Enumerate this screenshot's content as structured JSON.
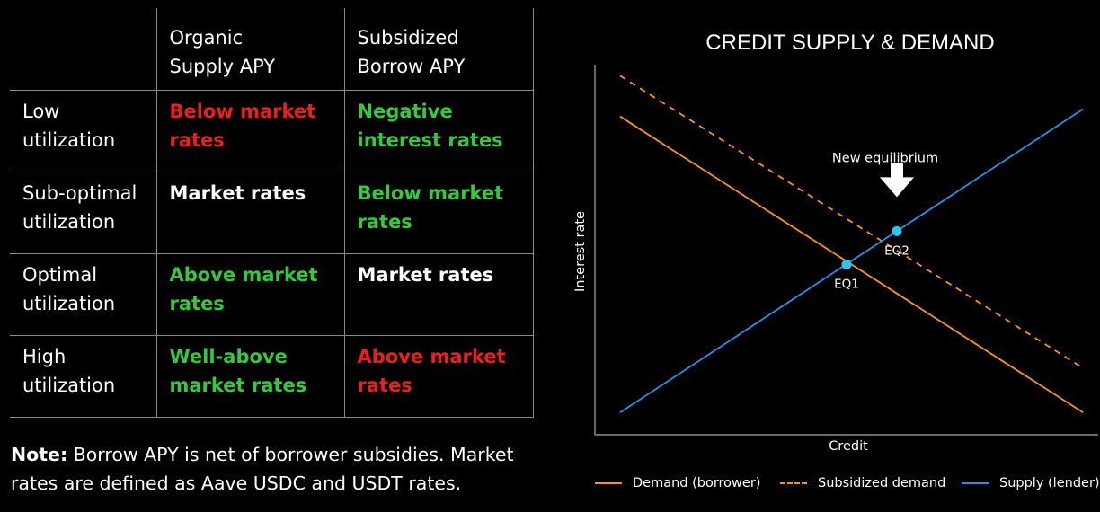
{
  "table": {
    "headers": [
      "",
      "Organic\nSupply APY",
      "Subsidized\nBorrow APY"
    ],
    "rows": [
      {
        "label": "Low\nutilization",
        "cells": [
          {
            "text": "Below market\nrates",
            "color": "#e8211f"
          },
          {
            "text": "Negative\ninterest rates",
            "color": "#35c93f"
          }
        ]
      },
      {
        "label": "Sub-optimal\nutilization",
        "cells": [
          {
            "text": "Market rates",
            "color": "#ffffff"
          },
          {
            "text": "Below market\nrates",
            "color": "#35c93f"
          }
        ]
      },
      {
        "label": "Optimal\nutilization",
        "cells": [
          {
            "text": "Above market\nrates",
            "color": "#35c93f"
          },
          {
            "text": "Market rates",
            "color": "#ffffff"
          }
        ]
      },
      {
        "label": "High\nutilization",
        "cells": [
          {
            "text": "Well-above\nmarket rates",
            "color": "#35c93f"
          },
          {
            "text": "Above market\nrates",
            "color": "#e8211f"
          }
        ]
      }
    ]
  },
  "note": {
    "bold": "Note:",
    "text": " Borrow APY is net of borrower subsidies. Market rates are defined as Aave USDC and USDT rates."
  },
  "chart_data": {
    "type": "line",
    "title": "CREDIT SUPPLY & DEMAND",
    "xlabel": "Credit",
    "ylabel": "Interest rate",
    "xlim": [
      0,
      100
    ],
    "ylim": [
      0,
      100
    ],
    "grid": false,
    "legend_position": "bottom",
    "series": [
      {
        "name": "Demand (borrower)",
        "color": "#f7931e",
        "style": "solid",
        "points": [
          [
            5,
            86
          ],
          [
            97,
            6
          ]
        ]
      },
      {
        "name": "Subsidized demand",
        "color": "#f7931e",
        "style": "dashed",
        "points": [
          [
            5,
            97
          ],
          [
            97,
            18
          ]
        ]
      },
      {
        "name": "Supply (lender)",
        "color": "#2b8fe8",
        "style": "solid",
        "points": [
          [
            5,
            6
          ],
          [
            97,
            88
          ]
        ]
      }
    ],
    "equilibria": [
      {
        "label": "EQ1",
        "x": 50,
        "y": 46
      },
      {
        "label": "EQ2",
        "x": 60,
        "y": 55
      }
    ],
    "equilibrium_color": "#29c6f0",
    "annotation": {
      "text": "New equilibrium",
      "target": "EQ2"
    }
  }
}
